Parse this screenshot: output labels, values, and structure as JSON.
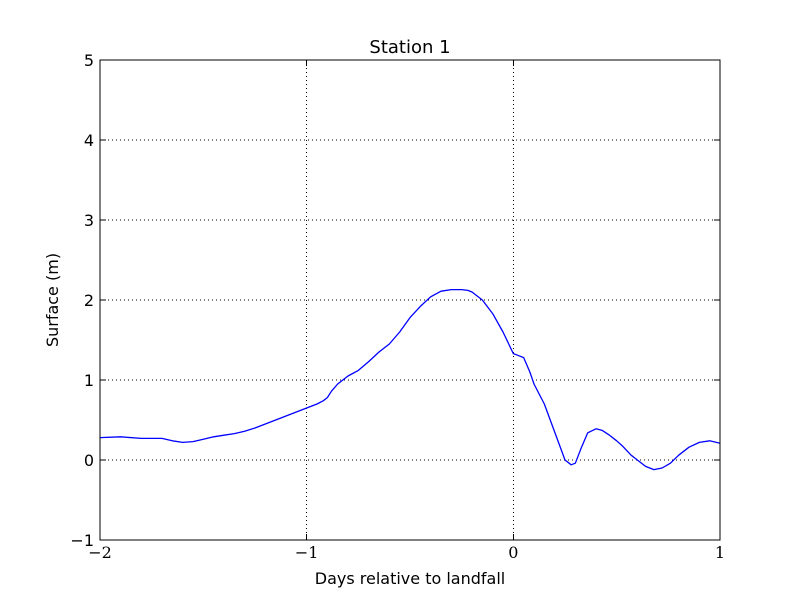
{
  "chart_data": {
    "type": "line",
    "title": "Station 1",
    "xlabel": "Days relative to landfall",
    "ylabel": "Surface (m)",
    "xlim": [
      -2,
      1
    ],
    "ylim": [
      -1,
      5
    ],
    "xticks": [
      -2,
      -1,
      0,
      1
    ],
    "yticks": [
      -1,
      0,
      1,
      2,
      3,
      4,
      5
    ],
    "xtick_labels": [
      "−2",
      "−1",
      "0",
      "1"
    ],
    "ytick_labels": [
      "−1",
      "0",
      "1",
      "2",
      "3",
      "4",
      "5"
    ],
    "grid": true,
    "series_color": "#0000ff",
    "series": [
      {
        "x": [
          -2.0,
          -1.9,
          -1.8,
          -1.7,
          -1.65,
          -1.6,
          -1.55,
          -1.5,
          -1.45,
          -1.4,
          -1.35,
          -1.3,
          -1.25,
          -1.2,
          -1.15,
          -1.1,
          -1.05,
          -1.0,
          -0.95,
          -0.92,
          -0.9,
          -0.88,
          -0.85,
          -0.8,
          -0.75,
          -0.7,
          -0.65,
          -0.6,
          -0.55,
          -0.5,
          -0.45,
          -0.4,
          -0.35,
          -0.3,
          -0.25,
          -0.22,
          -0.2,
          -0.15,
          -0.1,
          -0.05,
          0.0,
          0.02,
          0.05,
          0.08,
          0.1,
          0.15,
          0.2,
          0.25,
          0.28,
          0.3,
          0.33,
          0.36,
          0.4,
          0.43,
          0.46,
          0.5,
          0.53,
          0.57,
          0.6,
          0.64,
          0.68,
          0.72,
          0.76,
          0.8,
          0.85,
          0.9,
          0.95,
          1.0
        ],
        "y": [
          0.28,
          0.29,
          0.27,
          0.27,
          0.24,
          0.22,
          0.23,
          0.26,
          0.29,
          0.31,
          0.33,
          0.36,
          0.4,
          0.45,
          0.5,
          0.55,
          0.6,
          0.65,
          0.7,
          0.74,
          0.78,
          0.86,
          0.95,
          1.05,
          1.12,
          1.23,
          1.35,
          1.45,
          1.6,
          1.78,
          1.92,
          2.04,
          2.11,
          2.13,
          2.13,
          2.12,
          2.1,
          2.0,
          1.83,
          1.6,
          1.33,
          1.31,
          1.28,
          1.1,
          0.95,
          0.7,
          0.35,
          0.0,
          -0.06,
          -0.04,
          0.16,
          0.34,
          0.39,
          0.37,
          0.32,
          0.24,
          0.17,
          0.06,
          0.0,
          -0.08,
          -0.12,
          -0.1,
          -0.04,
          0.06,
          0.16,
          0.22,
          0.24,
          0.21
        ]
      }
    ]
  }
}
